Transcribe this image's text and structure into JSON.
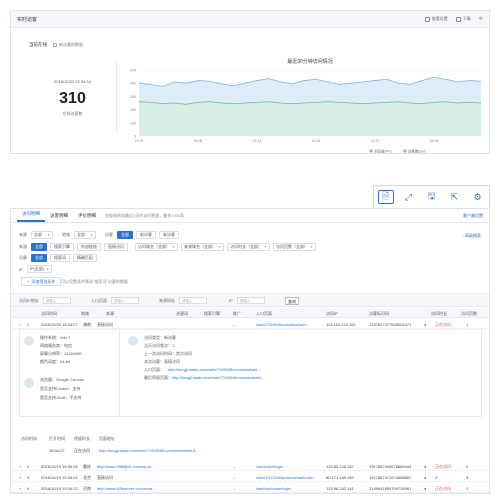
{
  "realtime": {
    "title": "实时访客",
    "action_settings": "查看设置",
    "action_download": "下载",
    "tab_active": "当前在线",
    "tab_other": "新访客的数量",
    "time": "2016/10/20 15:34:34",
    "count": "310",
    "count_label": "在线访客数"
  },
  "chart_data": {
    "type": "area",
    "title": "最近30分钟访问情况",
    "x": [
      "15:03",
      "15:04",
      "15:05",
      "15:06",
      "15:07",
      "15:08",
      "15:09",
      "15:10",
      "15:11",
      "15:12",
      "15:13",
      "15:14",
      "15:15",
      "15:16",
      "15:17",
      "15:18",
      "15:19",
      "15:20",
      "15:21",
      "15:22",
      "15:23",
      "15:24",
      "15:25",
      "15:26",
      "15:27",
      "15:28",
      "15:29",
      "15:30",
      "15:31",
      "15:32"
    ],
    "xticks": [
      "15:03",
      "15:08",
      "15:13",
      "15:18",
      "15:23",
      "15:28"
    ],
    "ylim": [
      0,
      500
    ],
    "yticks": [
      0,
      100,
      200,
      300,
      400,
      500
    ],
    "series": [
      {
        "name": "浏览量(PV)",
        "color": "#7db2e8",
        "fill": "#d9e9f8",
        "values": [
          400,
          390,
          375,
          410,
          400,
          420,
          415,
          395,
          380,
          400,
          420,
          435,
          410,
          395,
          420,
          430,
          410,
          390,
          400,
          410,
          420,
          430,
          400,
          390,
          420,
          445,
          430,
          410,
          420,
          415
        ]
      },
      {
        "name": "访客数(UV)",
        "color": "#6cc08a",
        "fill": "#d6f0e0",
        "values": [
          260,
          255,
          245,
          250,
          240,
          255,
          260,
          250,
          245,
          250,
          255,
          260,
          250,
          245,
          250,
          255,
          260,
          255,
          250,
          245,
          250,
          255,
          260,
          250,
          245,
          255,
          260,
          250,
          255,
          250
        ]
      }
    ]
  },
  "tools": {
    "icons": [
      "document-icon",
      "expand-icon",
      "save-icon",
      "export-icon",
      "settings-icon"
    ]
  },
  "tabs": {
    "items": [
      "访问明细",
      "访客明细",
      "评价明细"
    ],
    "note": "仅保留网站最近3天的访问数据，最多1000条",
    "right": "客户端设置"
  },
  "filters": {
    "row1_label_1": "来源",
    "row1_select_1": "全部",
    "row1_label_2": "地域",
    "row1_select_2": "全部",
    "row1_label_3": "访客",
    "row1_btns": [
      "全部",
      "新访客",
      "老访客"
    ],
    "row2_label": "来源",
    "row2_btns": [
      "全部",
      "搜索引擎",
      "外部链接",
      "直接访问"
    ],
    "row3_label": "设备",
    "row3_btns": [
      "全部",
      "搜索词",
      "精确匹配"
    ],
    "row3_selects": [
      "访问域名（全部）",
      "来源域名（全部）",
      "访问时长（全部）",
      "访问页数（全部）"
    ],
    "row4_label": "IP",
    "row4_select": "IP(全部)",
    "search_link": "↑ 高级搜索",
    "add_cond": "添加筛选条件",
    "add_cond_note": "可以设置条件筛选\"搜索词\"访客的数据"
  },
  "search": {
    "label_1": "访问IP地址",
    "ph_1": "请输入",
    "label_2": "入口页面",
    "ph_2": "请输入",
    "label_3": "来源网址",
    "ph_3": "请输入",
    "label_4": "IP",
    "ph_4": "请输入",
    "query_btn": "查询"
  },
  "table": {
    "headers": [
      "访问时间",
      "地域",
      "来源",
      "搜索词",
      "访问IP",
      "访客标识码",
      "访问时长",
      "访问页数"
    ],
    "extra_headers": [
      "关键词",
      "搜索引擎",
      "推广",
      "入口页面"
    ],
    "rows": [
      {
        "n": "1",
        "time": "2016/10/20 15:34:27",
        "region": "湖南",
        "source": "直接访问",
        "entry": "/web/7109545/overview/tabl...",
        "ip": "113.104.224.161",
        "id": "2197827477528904471",
        "dur": "正在访问",
        "pages": "1"
      },
      {
        "n": "2",
        "time": "2016/10/19 15:56:26",
        "region": "重庆",
        "source": "http://www.998ffjinli.com/crpuu...",
        "entry": "/web/user/login",
        "ip": "125.80.138.187",
        "id": "1917867444578865443",
        "dur": "正在访问",
        "pages": "2"
      },
      {
        "n": "3",
        "time": "2016/10/19 15:34:24",
        "region": "北京",
        "source": "直接访问",
        "entry": "/web/1013340/product/ma/index...",
        "ip": "60.171.169.160",
        "id": "1917867471974858667",
        "dur": "2'",
        "pages": "3"
      },
      {
        "n": "4",
        "time": "2016/10/19 15:34:22",
        "region": "河南",
        "source": "http://www.b2bserver.com/rovis...",
        "entry": "/web/welcome/login",
        "ip": "123.96.242.141",
        "id": "2149541859709735961",
        "dur": "正在访问",
        "pages": "1"
      }
    ]
  },
  "detail": {
    "os": "操作系统：Win 7",
    "network": "网络服务商：电信",
    "resolution": "屏幕分辨率：1440x900",
    "color": "颜色深度：24-bit",
    "browser": "浏览器：Google Chrome",
    "cookie": "是否支持Cookie：支持",
    "java": "是否支持JAVA：不支持",
    "visitor_type": "访问类型：新访客",
    "visit_count": "当天访问频次：1",
    "last_visit": "上一次访问时间：首次访问",
    "visit_days": "本次访客：直接访问",
    "entry_label": "入口页面：",
    "entry_url": "http://tongji.baidu.com/web/7109545/overview/tabl...",
    "last_label": "最后停留页面：",
    "last_url": "http://tongji.baidu.com/web/7109545/overview/tabl..."
  },
  "visit": {
    "headers": [
      "访问时间",
      "打开时间",
      "停留时长",
      "页面地址"
    ],
    "time": "15:34:27",
    "duration": "正在访问",
    "url": "http://tongji.baidu.com/web/7109545/overview/tabl/ib-8..."
  }
}
